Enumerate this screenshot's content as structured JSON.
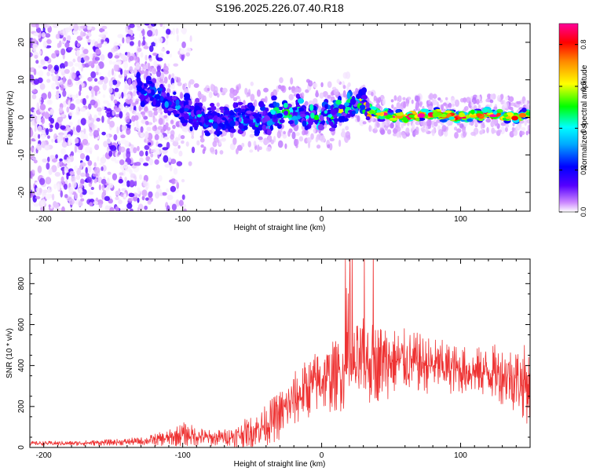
{
  "figure_title": "S196.2025.226.07.40.R18",
  "chart_data": [
    {
      "type": "heatmap",
      "name": "spectrogram",
      "title": "S196.2025.226.07.40.R18",
      "xlabel": "Height of straight line (km)",
      "ylabel": "Frequency (Hz)",
      "xlim": [
        -210,
        150
      ],
      "ylim": [
        -25,
        25
      ],
      "xticks": [
        -200,
        -100,
        0,
        100
      ],
      "yticks": [
        -20,
        -10,
        0,
        10,
        20
      ],
      "colorbar": {
        "label": "Normalized spectral amplitude",
        "range": [
          0.0,
          0.9
        ],
        "ticks": [
          "0.0",
          "0.2",
          "0.4",
          "0.6",
          "0.8"
        ],
        "colors": [
          "#ffffff",
          "#cc88ff",
          "#5500ff",
          "#0000ff",
          "#00ffff",
          "#00ff00",
          "#ffff00",
          "#ff8800",
          "#ff0000",
          "#ff00aa"
        ]
      },
      "ridge": {
        "x": [
          -130,
          -120,
          -110,
          -100,
          -90,
          -80,
          -70,
          -60,
          -50,
          -40,
          -30,
          -20,
          -10,
          0,
          10,
          20,
          25,
          30,
          40,
          60,
          80,
          100,
          120,
          140,
          150
        ],
        "center_hz": [
          8,
          6,
          4,
          2,
          0,
          -1,
          -1,
          0,
          0,
          -1,
          1,
          1,
          1,
          0,
          1,
          3,
          4,
          3,
          1,
          0,
          1,
          0,
          1,
          0,
          1
        ],
        "peak_amplitude": [
          0.25,
          0.3,
          0.3,
          0.25,
          0.3,
          0.28,
          0.3,
          0.3,
          0.35,
          0.35,
          0.4,
          0.45,
          0.45,
          0.4,
          0.45,
          0.45,
          0.5,
          0.5,
          0.75,
          0.8,
          0.85,
          0.8,
          0.8,
          0.75,
          0.6
        ],
        "noise_region_x": [
          -210,
          -125
        ]
      }
    },
    {
      "type": "line",
      "name": "snr",
      "xlabel": "Height of straight line (km)",
      "ylabel": "SNR (10 * v/v)",
      "xlim": [
        -210,
        150
      ],
      "ylim": [
        0,
        920
      ],
      "xticks": [
        -200,
        -100,
        0,
        100
      ],
      "yticks": [
        0,
        200,
        400,
        600,
        800
      ],
      "color": "#ee3333",
      "envelope": {
        "x": [
          -210,
          -180,
          -150,
          -130,
          -110,
          -100,
          -90,
          -80,
          -70,
          -60,
          -50,
          -40,
          -30,
          -20,
          -10,
          0,
          10,
          20,
          30,
          40,
          50,
          60,
          70,
          80,
          90,
          100,
          110,
          120,
          130,
          140,
          150
        ],
        "mean": [
          20,
          20,
          25,
          30,
          45,
          65,
          55,
          45,
          50,
          60,
          80,
          110,
          160,
          230,
          290,
          330,
          350,
          380,
          410,
          420,
          420,
          420,
          410,
          400,
          390,
          380,
          370,
          370,
          360,
          340,
          300
        ],
        "spread": [
          10,
          12,
          15,
          20,
          40,
          60,
          50,
          40,
          40,
          60,
          80,
          100,
          130,
          140,
          150,
          170,
          180,
          200,
          220,
          200,
          180,
          160,
          150,
          140,
          130,
          120,
          120,
          130,
          150,
          170,
          200
        ]
      }
    }
  ]
}
